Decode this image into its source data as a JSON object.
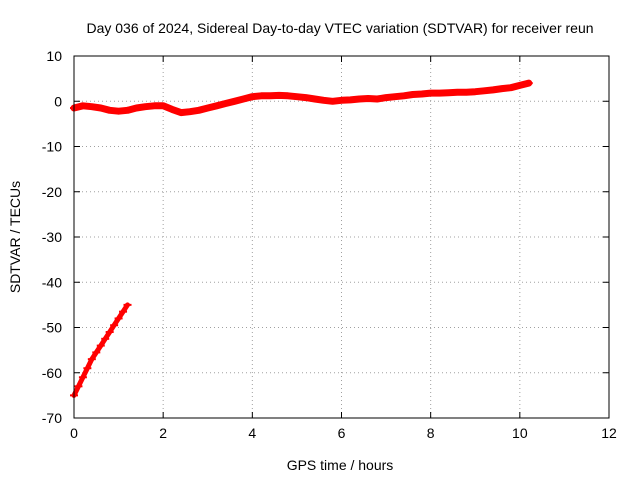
{
  "chart_data": {
    "type": "scatter",
    "title": "Day 036 of 2024, Sidereal Day-to-day VTEC variation (SDTVAR) for receiver reun",
    "xlabel": "GPS time / hours",
    "ylabel": "SDTVAR / TECUs",
    "xlim": [
      0,
      12
    ],
    "ylim": [
      -70,
      10
    ],
    "x_ticks": [
      "0",
      "2",
      "4",
      "6",
      "8",
      "10",
      "12"
    ],
    "y_ticks": [
      "10",
      "0",
      "-10",
      "-20",
      "-30",
      "-40",
      "-50",
      "-60",
      "-70"
    ],
    "grid": true,
    "legend": "none",
    "series_color": "#ff0000",
    "series": [
      {
        "x": [
          0.0,
          0.2,
          0.4,
          0.6,
          0.8,
          1.0,
          1.2,
          1.4,
          1.6,
          1.8,
          2.0,
          2.2,
          2.4,
          2.6,
          2.8,
          3.0,
          3.2,
          3.4,
          3.6,
          3.8,
          4.0,
          4.2,
          4.4,
          4.6,
          4.8,
          5.0,
          5.2,
          5.4,
          5.6,
          5.8,
          6.0,
          6.2,
          6.4,
          6.6,
          6.8,
          7.0,
          7.2,
          7.4,
          7.6,
          7.8,
          8.0,
          8.2,
          8.4,
          8.6,
          8.8,
          9.0,
          9.2,
          9.4,
          9.6,
          9.8,
          10.0,
          10.2
        ],
        "y": [
          -1.5,
          -1.0,
          -1.2,
          -1.5,
          -2.0,
          -2.2,
          -2.0,
          -1.5,
          -1.2,
          -1.0,
          -1.0,
          -1.8,
          -2.5,
          -2.3,
          -2.0,
          -1.5,
          -1.0,
          -0.5,
          0.0,
          0.5,
          1.0,
          1.2,
          1.2,
          1.3,
          1.2,
          1.0,
          0.8,
          0.5,
          0.2,
          0.0,
          0.2,
          0.3,
          0.5,
          0.6,
          0.5,
          0.8,
          1.0,
          1.2,
          1.5,
          1.6,
          1.8,
          1.8,
          1.9,
          2.0,
          2.0,
          2.1,
          2.3,
          2.5,
          2.8,
          3.0,
          3.5,
          4.0
        ]
      },
      {
        "x": [
          0.0,
          0.1,
          0.2,
          0.3,
          0.4,
          0.5,
          0.6,
          0.7,
          0.8,
          0.9,
          1.0,
          1.1,
          1.2
        ],
        "y": [
          -65.0,
          -63.0,
          -61.0,
          -59.0,
          -57.0,
          -55.5,
          -54.0,
          -52.5,
          -51.0,
          -49.5,
          -48.0,
          -46.5,
          -45.0
        ]
      }
    ]
  }
}
